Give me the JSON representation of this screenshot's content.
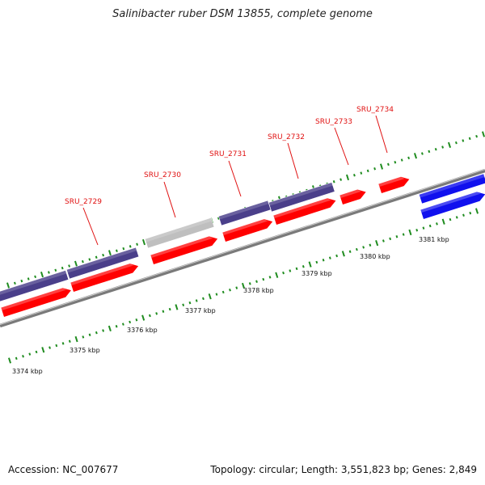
{
  "title": "Salinibacter ruber DSM 13855, complete genome",
  "footer": {
    "accession": "Accession: NC_007677",
    "stats": "Topology: circular; Length: 3,551,823 bp; Genes: 2,849"
  },
  "colors": {
    "cds": "#ff0000",
    "gene_purple": "#4a3f8a",
    "gene_gray": "#bfbfbf",
    "gene_blue": "#1010ee",
    "backbone": "#7a7a7a",
    "tick": "#1f8c1f",
    "label": "#e01010"
  },
  "gene_labels": [
    "SRU_2729",
    "SRU_2730",
    "SRU_2731",
    "SRU_2732",
    "SRU_2733",
    "SRU_2734"
  ],
  "scale_labels": [
    "3374 kbp",
    "3375 kbp",
    "3376 kbp",
    "3377 kbp",
    "3378 kbp",
    "3379 kbp",
    "3380 kbp",
    "3381 kbp"
  ]
}
